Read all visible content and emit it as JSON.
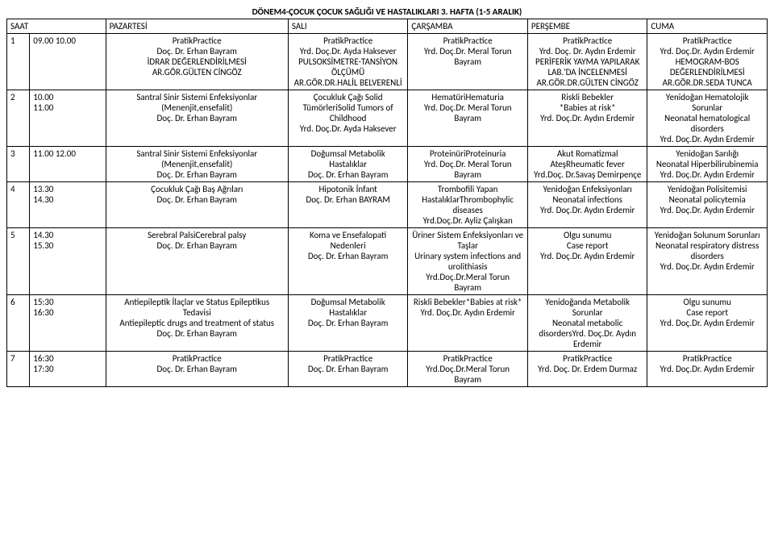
{
  "title": "DÖNEM4-ÇOCUK ÇOCUK SAĞLIĞI VE HASTALIKLARI 3. HAFTA (1-5 ARALIK)",
  "headers": {
    "saat": "SAAT",
    "pazartesi": "PAZARTESİ",
    "sali": "SALI",
    "carsamba": "ÇARŞAMBA",
    "persembe": "PERŞEMBE",
    "cuma": "CUMA"
  },
  "rows": [
    {
      "num": "1",
      "time": "09.00     10.00",
      "pzt": "PratikPractice\nDoç. Dr. Erhan Bayram\nİDRAR DEĞERLENDİRİLMESİ\nAR.GÖR.GÜLTEN CİNGÖZ",
      "sali": "PratikPractice\nYrd. Doç.Dr. Ayda Haksever\nPULSOKSİMETRE-TANSİYON ÖLÇÜMÜ\nAR.GÖR.DR.HALİL BELVERENLİ",
      "car": "PratikPractice\nYrd. Doç.Dr. Meral Torun Bayram",
      "per": "PratikPractice\nYrd. Doç. Dr. Aydın Erdemir\nPERİFERİK YAYMA YAPILARAK LAB.'DA İNCELENMESİ\nAR.GÖR.DR.GÜLTEN CİNGÖZ",
      "cuma": "PratikPractice\nYrd. Doç.Dr. Aydın Erdemir\nHEMOGRAM-BOS DEĞERLENDİRİLMESİ\nAR.GÖR.DR.SEDA TUNCA"
    },
    {
      "num": "2",
      "time": "10.00\n11.00",
      "pzt": "Santral Sinir Sistemi Enfeksiyonlar (Menenjit,ensefalit)\nDoç. Dr. Erhan Bayram",
      "sali": "Çocukluk Çağı Solid TümörleriSolid Tumors of Childhood\nYrd. Doç.Dr. Ayda Haksever",
      "car": "HematüriHematuria\nYrd. Doç.Dr. Meral Torun Bayram",
      "per": "Riskli Bebekler\n*Babies at risk*\nYrd. Doç.Dr. Aydın Erdemir",
      "cuma": "Yenidoğan Hematolojik Sorunlar\nNeonatal hematological disorders\nYrd. Doç.Dr. Aydın Erdemir"
    },
    {
      "num": "3",
      "time": "11.00     12.00",
      "pzt": "Santral Sinir Sistemi Enfeksiyonlar (Menenjit,ensefalit)\nDoç. Dr. Erhan Bayram",
      "sali": "Doğumsal Metabolik Hastalıklar\nDoç. Dr. Erhan Bayram",
      "car": "ProteinüriProteinuria\nYrd. Doç.Dr. Meral Torun Bayram",
      "per": "Akut Romatizmal AteşRheumatic fever\nYrd.Doç. Dr.Savaş Demirpençe",
      "cuma": "Yenidoğan Sarılığı\nNeonatal Hiperbilirubinemia\nYrd. Doç.Dr. Aydın Erdemir"
    },
    {
      "num": "4",
      "time": "13.30\n14.30",
      "pzt": "Çocukluk Çağı Baş Ağrıları\nDoç. Dr. Erhan Bayram",
      "sali": "Hipotonik İnfant\nDoç. Dr. Erhan BAYRAM",
      "car": "Trombofili Yapan HastalıklarThrombophylic diseases\nYrd.Doç.Dr. Ayliz Çalışkan",
      "per": "Yenidoğan Enfeksiyonları\nNeonatal infections\nYrd. Doç.Dr. Aydın Erdemir",
      "cuma": "Yenidoğan Polisitemisi\nNeonatal policytemia\nYrd. Doç.Dr. Aydın Erdemir"
    },
    {
      "num": "5",
      "time": "14.30\n15.30",
      "pzt": "Serebral PalsiCerebral palsy\nDoç. Dr. Erhan Bayram",
      "sali": "Koma ve Ensefalopati Nedenleri\nDoç. Dr. Erhan Bayram",
      "car": "Üriner Sistem Enfeksiyonları ve Taşlar\nUrinary system infections and urolithiasis\nYrd.Doç.Dr.Meral Torun Bayram",
      "per": "Olgu sunumu\nCase report\nYrd. Doç.Dr. Aydın Erdemir",
      "cuma": "Yenidoğan Solunum Sorunları\nNeonatal respiratory distress disorders\nYrd. Doç.Dr. Aydın Erdemir"
    },
    {
      "num": "6",
      "time": "15:30\n16:30",
      "pzt": "Antiepileptik İlaçlar ve Status Epileptikus Tedavisi\nAntiepileptic drugs and treatment of status\nDoç. Dr. Erhan Bayram",
      "sali": "Doğumsal Metabolik Hastalıklar\nDoç. Dr. Erhan Bayram",
      "car": "Riskli Bebekler*Babies at risk*\nYrd. Doç.Dr. Aydın Erdemir",
      "per": "Yenidoğanda Metabolik Sorunlar\nNeonatal metabolic disordersYrd. Doç.Dr. Aydın Erdemir",
      "cuma": "Olgu sunumu\nCase report\nYrd. Doç.Dr. Aydın Erdemir"
    },
    {
      "num": "7",
      "time": "16:30\n17:30",
      "pzt": "PratikPractice\nDoç. Dr. Erhan Bayram",
      "sali": "PratikPractice\nDoç. Dr. Erhan Bayram",
      "car": "PratikPractice\nYrd.Doç.Dr.Meral Torun Bayram",
      "per": "PratikPractice\nYrd. Doç. Dr. Erdem Durmaz",
      "cuma": "PratikPractice\nYrd. Doç.Dr. Aydın Erdemir"
    }
  ]
}
